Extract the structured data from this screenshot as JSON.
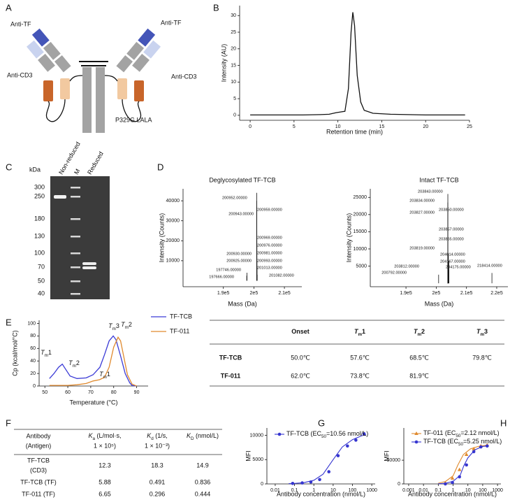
{
  "panel_labels": [
    "A",
    "B",
    "C",
    "D",
    "E",
    "F",
    "G",
    "H"
  ],
  "diagram": {
    "labels": [
      "Anti-TF",
      "Anti-TF",
      "Anti-CD3",
      "Anti-CD3",
      "P329G LALA"
    ]
  },
  "chromatogram": {
    "type": "line",
    "x_label": "Retention time (min)",
    "y_label": "Intensity (AU)",
    "xlim": [
      -1.2,
      25
    ],
    "xticks": [
      0,
      5,
      10,
      15,
      20,
      25
    ],
    "ylim": [
      -1.5,
      33
    ],
    "yticks": [
      0,
      5,
      10,
      15,
      20,
      25,
      30
    ],
    "series": [
      {
        "color": "#111111",
        "x": [
          0,
          2,
          4,
          6,
          8,
          9,
          9.8,
          10.3,
          10.8,
          11.2,
          11.5,
          11.7,
          11.9,
          12.2,
          12.6,
          13,
          14,
          16,
          18,
          20,
          22,
          24.5
        ],
        "values": [
          0.1,
          0.1,
          0.1,
          0.1,
          0.2,
          0.3,
          0.8,
          1.0,
          1.2,
          8,
          25,
          31,
          27,
          12,
          4,
          1.5,
          0.6,
          0.3,
          0.2,
          0.1,
          0.1,
          0.1
        ]
      }
    ]
  },
  "gel": {
    "unit": "kDa",
    "lanes": [
      "Non-reduced",
      "M",
      "Reduced"
    ],
    "markers": [
      300,
      250,
      180,
      130,
      100,
      70,
      50,
      40
    ]
  },
  "spectra": [
    {
      "type": "spectrum",
      "title": "Deglycosylated TF-TCB",
      "x_label": "Mass (Da)",
      "y_label": "Intensity (Counts)",
      "xlim": [
        176800,
        215700
      ],
      "xticks": [
        {
          "value": 190000,
          "label": "1.9e5"
        },
        {
          "value": 200000,
          "label": "2e5"
        },
        {
          "value": 210000,
          "label": "2.1e5"
        }
      ],
      "ylim": [
        -3000,
        46000
      ],
      "yticks": [
        10000,
        20000,
        30000,
        40000
      ],
      "series": [
        {
          "color": "#111111",
          "x": [
            200952,
            200959,
            200943,
            200969,
            200976,
            200981,
            200930,
            200925,
            200993,
            201013,
            197746,
            197666,
            201082
          ],
          "x_labels": [
            "200952.00000",
            "200959.00000",
            "200943.00000",
            "200969.00000",
            "200976.00000",
            "200981.00000",
            "200930.00000",
            "200925.00000",
            "200993.00000",
            "201013.00000",
            "197746.00000",
            "197666.00000",
            "201082.00000"
          ],
          "values": [
            44000,
            40000,
            37000,
            25000,
            21000,
            18000,
            14000,
            12000,
            10000,
            7000,
            4000,
            2500,
            3000
          ]
        }
      ]
    },
    {
      "type": "spectrum",
      "title": "Intact TF-TCB",
      "x_label": "Mass (Da)",
      "y_label": "Intensity (Counts)",
      "xlim": [
        178200,
        223700
      ],
      "xticks": [
        {
          "value": 190000,
          "label": "1.9e5"
        },
        {
          "value": 200000,
          "label": "2e5"
        },
        {
          "value": 210000,
          "label": "2.1e5"
        },
        {
          "value": 220000,
          "label": "2.2e5"
        }
      ],
      "ylim": [
        -1000,
        27500
      ],
      "yticks": [
        5000,
        10000,
        15000,
        20000,
        25000
      ],
      "series": [
        {
          "color": "#111111",
          "x": [
            203843,
            203834,
            203850,
            203827,
            203857,
            203865,
            203819,
            204014,
            204167,
            203812,
            204175,
            200792,
            218414
          ],
          "x_labels": [
            "203843.00000",
            "203834.00000",
            "203850.00000",
            "203827.00000",
            "203857.00000",
            "203865.00000",
            "203819.00000",
            "204014.00000",
            "204167.00000",
            "203812.00000",
            "204175.00000",
            "200792.00000",
            "218414.00000"
          ],
          "values": [
            26000,
            23500,
            22000,
            19500,
            16000,
            13500,
            10000,
            8500,
            6500,
            4500,
            4000,
            2500,
            3000
          ]
        }
      ]
    }
  ],
  "dsc": {
    "type": "line",
    "x_label": "Temperature (°C)",
    "y_label": "Cp (kcal/mol/°C)",
    "xlim": [
      47.5,
      95
    ],
    "xticks": [
      50,
      60,
      70,
      80,
      90
    ],
    "ylim": [
      0,
      105
    ],
    "yticks": [
      0,
      20,
      40,
      60,
      80,
      100
    ],
    "series": [
      {
        "name": "TF-TCB",
        "color": "#3b3bd6",
        "x": [
          52,
          54,
          56,
          57.6,
          59,
          61,
          64,
          68,
          71,
          74,
          76,
          78,
          79.8,
          81,
          83,
          85,
          87,
          88,
          90
        ],
        "values": [
          12,
          20,
          30,
          35,
          27,
          16,
          12,
          13,
          18,
          30,
          50,
          72,
          80,
          74,
          48,
          20,
          5,
          1,
          0
        ]
      },
      {
        "name": "TF-011",
        "color": "#e08a2e",
        "x": [
          52,
          56,
          60,
          64,
          68,
          71,
          73.8,
          76,
          78,
          80,
          81.9,
          83,
          84.5,
          86,
          88,
          90
        ],
        "values": [
          1,
          1,
          1,
          2,
          4,
          8,
          10,
          14,
          30,
          62,
          78,
          72,
          45,
          18,
          3,
          0
        ]
      }
    ],
    "annotations": [
      {
        "base": "T",
        "sub": "m",
        "suffix": "1",
        "color": "#3b3bd6"
      },
      {
        "base": "T",
        "sub": "m",
        "suffix": "2",
        "color": "#3b3bd6"
      },
      {
        "base": "T",
        "sub": "m",
        "suffix": "3",
        "color": "#3b3bd6"
      },
      {
        "base": "T",
        "sub": "m",
        "suffix": "2",
        "color": "#e08a2e"
      },
      {
        "base": "T",
        "sub": "m",
        "suffix": "1",
        "color": "#e08a2e"
      }
    ]
  },
  "stability_table": {
    "header": [
      {
        "base": "Onset"
      },
      {
        "base": "T",
        "sub": "m",
        "suffix": "1"
      },
      {
        "base": "T",
        "sub": "m",
        "suffix": "2"
      },
      {
        "base": "T",
        "sub": "m",
        "suffix": "3"
      }
    ],
    "rows": [
      [
        "TF-TCB",
        "50.0℃",
        "57.6℃",
        "68.5℃",
        "79.8℃"
      ],
      [
        "TF-011",
        "62.0℃",
        "73.8℃",
        "81.9℃"
      ]
    ]
  },
  "kinetics_table": {
    "header": [
      {
        "lines": [
          "Antibody",
          "(Antigen)"
        ]
      },
      {
        "base": "K",
        "sub": "a",
        "suffix": " (L/mol·s,",
        "line2": "1 × 10⁵)"
      },
      {
        "base": "K",
        "sub": "d",
        "suffix": " (1/s,",
        "line2": "1 × 10⁻³)"
      },
      {
        "base": "K",
        "sub": "D",
        "suffix": " (nmol/L)"
      }
    ],
    "rows": [
      {
        "antibody": "TF-TCB",
        "antigen": "(CD3)",
        "values": [
          12.3,
          18.3,
          14.9
        ]
      },
      {
        "antibody": "TF-TCB (TF)",
        "values": [
          5.88,
          0.491,
          0.836
        ]
      },
      {
        "antibody": "TF-011 (TF)",
        "values": [
          6.65,
          0.296,
          0.444
        ]
      }
    ]
  },
  "binding": [
    {
      "type": "scatter",
      "log_x": true,
      "x_label": "Antibody concentration (nmol/L)",
      "y_label": "MFI",
      "xlim": [
        0.0037,
        1500
      ],
      "xticks": [
        0.01,
        0.1,
        1,
        10,
        100,
        1000
      ],
      "ylim": [
        0,
        11500
      ],
      "yticks": [
        0,
        5000,
        10000
      ],
      "series": [
        {
          "legend": {
            "base": "TF-TCB (EC",
            "sub": "50",
            "suffix": "=10.56 nmol/L)"
          },
          "color": "#3535d0",
          "marker": "circle",
          "x": [
            0.08,
            0.25,
            0.7,
            2,
            6,
            18,
            55,
            150,
            400
          ],
          "values": [
            100,
            200,
            400,
            900,
            2500,
            5800,
            7800,
            9000,
            10300
          ],
          "fit_x": [
            0.05,
            0.1,
            0.3,
            1,
            3,
            10,
            30,
            100,
            300,
            500
          ],
          "fit_values": [
            60,
            100,
            260,
            750,
            2000,
            5000,
            7600,
            9100,
            9900,
            10100
          ]
        }
      ]
    },
    {
      "type": "scatter",
      "log_x": true,
      "x_label": "Antibody concentration (nmol/L)",
      "y_label": "MFI",
      "xlim": [
        0.00047,
        1700
      ],
      "xticks": [
        0.001,
        0.01,
        0.1,
        1,
        10,
        100,
        1000
      ],
      "ylim": [
        0,
        118000
      ],
      "yticks": [
        0,
        50000
      ],
      "series": [
        {
          "legend": {
            "base": "TF-011 (EC",
            "sub": "50",
            "suffix": "=2.12 nmol/L)"
          },
          "color": "#e08a2e",
          "marker": "triangle",
          "x": [
            0.3,
            0.9,
            2.7,
            8,
            25,
            75,
            200
          ],
          "values": [
            2000,
            12000,
            30000,
            62000,
            74000,
            80000,
            82000
          ],
          "fit_x": [
            0.1,
            0.3,
            1,
            2.12,
            5,
            15,
            50,
            200
          ],
          "fit_values": [
            1500,
            5000,
            17000,
            40000,
            62000,
            74000,
            79000,
            82000
          ]
        },
        {
          "legend": {
            "base": "TF-TCB (EC",
            "sub": "50",
            "suffix": "=5.25 nmol/L)"
          },
          "color": "#3535d0",
          "marker": "circle",
          "x": [
            0.3,
            0.9,
            2.7,
            8,
            25,
            75,
            200
          ],
          "values": [
            0,
            3000,
            15000,
            40000,
            68000,
            78000,
            80000
          ],
          "fit_x": [
            0.1,
            0.3,
            1,
            3,
            5.25,
            10,
            30,
            100,
            200
          ],
          "fit_values": [
            300,
            1200,
            5500,
            18000,
            38000,
            55000,
            72000,
            79000,
            80000
          ]
        }
      ]
    }
  ]
}
